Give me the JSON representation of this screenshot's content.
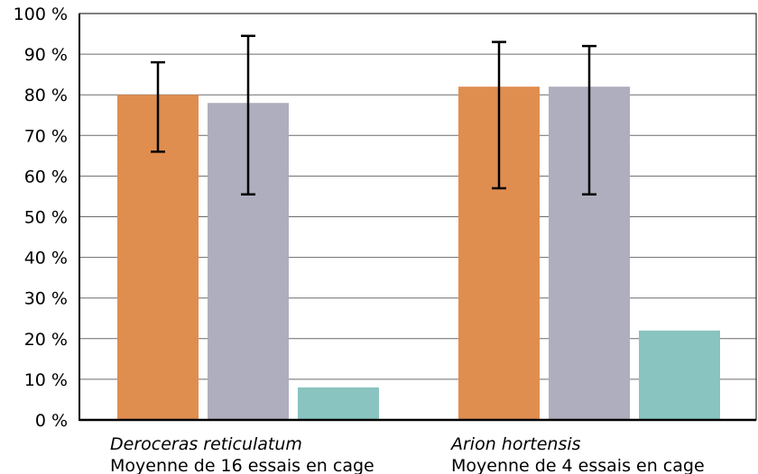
{
  "chart_data": {
    "type": "bar",
    "categories": [
      {
        "species": "Deroceras reticulatum",
        "subtitle": "Moyenne de 16 essais en cage"
      },
      {
        "species": "Arion hortensis",
        "subtitle": "Moyenne de 4 essais en cage"
      }
    ],
    "series": [
      {
        "color": "#e08d50",
        "values": [
          80,
          82
        ],
        "error_low": [
          66,
          57
        ],
        "error_high": [
          88,
          93
        ]
      },
      {
        "color": "#aeaebf",
        "values": [
          78,
          82
        ],
        "error_low": [
          55.5,
          55.5
        ],
        "error_high": [
          94.5,
          92
        ]
      },
      {
        "color": "#89c4c0",
        "values": [
          8,
          22
        ],
        "error_low": [
          null,
          null
        ],
        "error_high": [
          null,
          null
        ]
      }
    ],
    "y_ticks": [
      "0 %",
      "10 %",
      "20 %",
      "30 %",
      "40 %",
      "50 %",
      "60 %",
      "70 %",
      "80 %",
      "90 %",
      "100 %"
    ],
    "ylim": [
      0,
      100
    ],
    "title": "",
    "xlabel": "",
    "ylabel": "",
    "grid": true,
    "legend": "none"
  }
}
